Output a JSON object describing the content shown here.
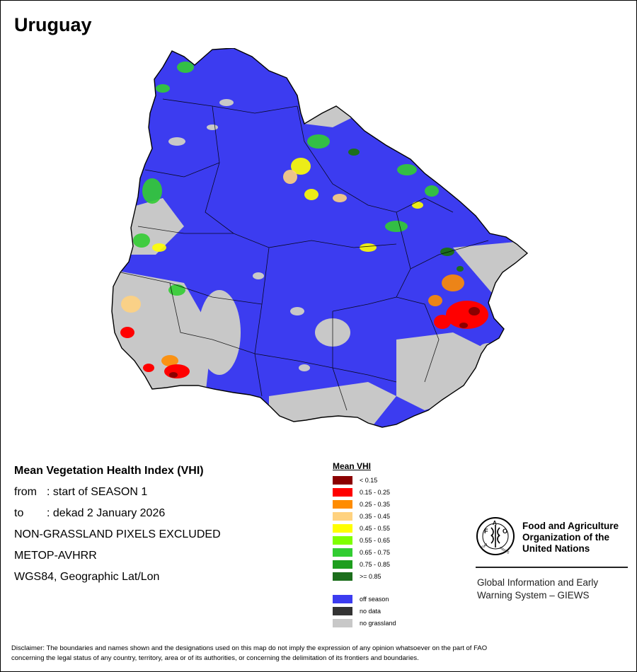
{
  "title": "Uruguay",
  "info": {
    "heading": "Mean Vegetation Health Index (VHI)",
    "from_label": "from",
    "from_value": ": start of SEASON 1",
    "to_label": "to",
    "to_value": ": dekad 2 January 2026",
    "exclusion_note": "NON-GRASSLAND PIXELS EXCLUDED",
    "sensor": "METOP-AVHRR",
    "projection": "WGS84, Geographic Lat/Lon"
  },
  "legend": {
    "title": "Mean VHI",
    "classes": [
      {
        "label": "< 0.15",
        "color": "#8b0000"
      },
      {
        "label": "0.15 - 0.25",
        "color": "#ff0000"
      },
      {
        "label": "0.25 - 0.35",
        "color": "#ff8c00"
      },
      {
        "label": "0.35 - 0.45",
        "color": "#ffd27f"
      },
      {
        "label": "0.45 - 0.55",
        "color": "#ffff00"
      },
      {
        "label": "0.55 - 0.65",
        "color": "#7fff00"
      },
      {
        "label": "0.65 - 0.75",
        "color": "#32cd32"
      },
      {
        "label": "0.75 - 0.85",
        "color": "#1e9e1e"
      },
      {
        "label": ">= 0.85",
        "color": "#1c6e1c"
      }
    ],
    "special": [
      {
        "label": "off season",
        "color": "#3c3cf0"
      },
      {
        "label": "no data",
        "color": "#333333"
      },
      {
        "label": "no grassland",
        "color": "#c8c8c8"
      }
    ]
  },
  "logo": {
    "emblem_text": "FAO",
    "emblem_motto": "FIAT PANIS",
    "org_line1": "Food and Agriculture",
    "org_line2": "Organization of the",
    "org_line3": "United Nations",
    "giews_line1": "Global Information and Early",
    "giews_line2": "Warning System – GIEWS"
  },
  "disclaimer_line1": "Disclaimer: The boundaries and names shown and the designations used on this map do not imply the expression of any opinion whatsoever on the part of FAO",
  "disclaimer_line2": "concerning the legal status of any country, territory, area or of its authorities, or concerning the delimitation of its frontiers and boundaries.",
  "map_colors": {
    "off_season": "#3c3cf0",
    "no_grassland": "#c8c8c8",
    "border": "#000000"
  }
}
